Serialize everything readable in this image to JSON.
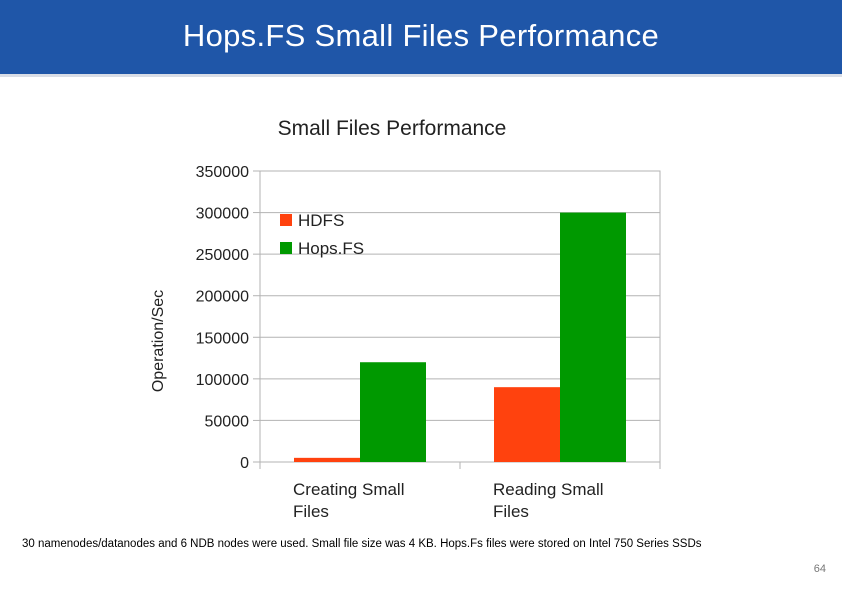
{
  "slide": {
    "title": "Hops.FS Small Files Performance",
    "footer_note": "30 namenodes/datanodes and 6 NDB nodes were used. Small file size was 4 KB. Hops.Fs files were stored on Intel 750 Series SSDs",
    "page_number": "64"
  },
  "chart_data": {
    "type": "bar",
    "title": "Small Files Performance",
    "ylabel": "Operation/Sec",
    "xlabel": "",
    "categories": [
      [
        "Creating Small",
        "Files"
      ],
      [
        "Reading Small",
        "Files"
      ]
    ],
    "series": [
      {
        "name": "HDFS",
        "color": "#ff420e",
        "values": [
          5000,
          90000
        ]
      },
      {
        "name": "Hops.FS",
        "color": "#009900",
        "values": [
          120000,
          300000
        ]
      }
    ],
    "ylim": [
      0,
      350000
    ],
    "yticks": [
      "0",
      "50000",
      "100000",
      "150000",
      "200000",
      "250000",
      "300000",
      "350000"
    ],
    "grid": true,
    "legend_position": "top-left"
  }
}
